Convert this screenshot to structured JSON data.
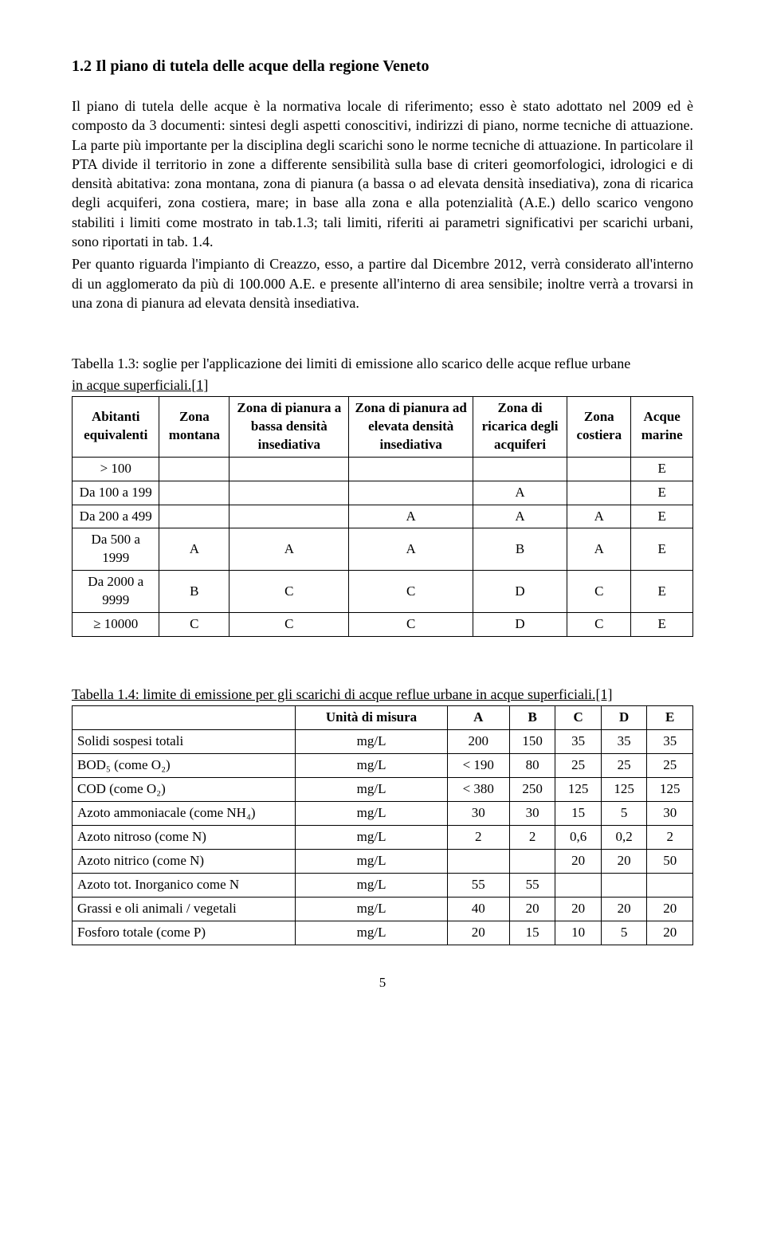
{
  "heading": "1.2  Il piano di tutela delle acque della regione Veneto",
  "paragraphs": [
    "Il piano di tutela delle acque è la normativa locale di riferimento; esso è stato adottato nel 2009 ed è composto da 3 documenti: sintesi degli aspetti conoscitivi, indirizzi di piano, norme tecniche di attuazione. La parte più importante per la disciplina degli scarichi sono le norme tecniche di attuazione. In particolare il PTA divide il territorio in zone a differente sensibilità sulla base di criteri geomorfologici, idrologici e di densità abitativa: zona montana, zona di pianura (a bassa o ad elevata densità insediativa), zona di ricarica degli acquiferi, zona costiera, mare; in base alla zona e alla potenzialità (A.E.) dello scarico vengono stabiliti i limiti come mostrato in tab.1.3; tali limiti, riferiti ai parametri significativi per scarichi urbani, sono riportati in tab. 1.4.",
    "Per quanto riguarda l'impianto di Creazzo, esso, a partire dal Dicembre 2012, verrà considerato all'interno di un agglomerato da più di 100.000 A.E. e presente all'interno di area sensibile; inoltre verrà a trovarsi in una zona di pianura ad elevata densità insediativa."
  ],
  "table1": {
    "caption_line1": "Tabella 1.3: soglie per l'applicazione dei limiti di emissione allo scarico delle acque reflue urbane",
    "caption_line2": "in acque superficiali.[1]",
    "headers": [
      "Abitanti equivalenti",
      "Zona montana",
      "Zona di pianura a bassa densità insediativa",
      "Zona di pianura ad elevata densità insediativa",
      "Zona di ricarica degli acquiferi",
      "Zona costiera",
      "Acque marine"
    ],
    "rows": [
      [
        "> 100",
        "",
        "",
        "",
        "",
        "",
        "E"
      ],
      [
        "Da 100 a 199",
        "",
        "",
        "",
        "A",
        "",
        "E"
      ],
      [
        "Da 200 a 499",
        "",
        "",
        "A",
        "A",
        "A",
        "E"
      ],
      [
        "Da 500 a 1999",
        "A",
        "A",
        "A",
        "B",
        "A",
        "E"
      ],
      [
        "Da 2000 a 9999",
        "B",
        "C",
        "C",
        "D",
        "C",
        "E"
      ],
      [
        "≥ 10000",
        "C",
        "C",
        "C",
        "D",
        "C",
        "E"
      ]
    ]
  },
  "table2": {
    "caption": "Tabella 1.4: limite di emissione per gli scarichi di acque reflue urbane in acque superficiali.[1]",
    "headers": [
      "",
      "Unità di misura",
      "A",
      "B",
      "C",
      "D",
      "E"
    ],
    "rows": [
      [
        "Solidi sospesi totali",
        "mg/L",
        "200",
        "150",
        "35",
        "35",
        "35"
      ],
      [
        "BOD₅ (come O₂)",
        "mg/L",
        "< 190",
        "80",
        "25",
        "25",
        "25"
      ],
      [
        "COD (come O₂)",
        "mg/L",
        "< 380",
        "250",
        "125",
        "125",
        "125"
      ],
      [
        "Azoto ammoniacale (come NH₄)",
        "mg/L",
        "30",
        "30",
        "15",
        "5",
        "30"
      ],
      [
        "Azoto nitroso (come N)",
        "mg/L",
        "2",
        "2",
        "0,6",
        "0,2",
        "2"
      ],
      [
        "Azoto nitrico (come N)",
        "mg/L",
        "",
        "",
        "20",
        "20",
        "50"
      ],
      [
        "Azoto tot. Inorganico come N",
        "mg/L",
        "55",
        "55",
        "",
        "",
        ""
      ],
      [
        "Grassi e oli animali / vegetali",
        "mg/L",
        "40",
        "20",
        "20",
        "20",
        "20"
      ],
      [
        "Fosforo totale (come P)",
        "mg/L",
        "20",
        "15",
        "10",
        "5",
        "20"
      ]
    ]
  },
  "page_number": "5"
}
